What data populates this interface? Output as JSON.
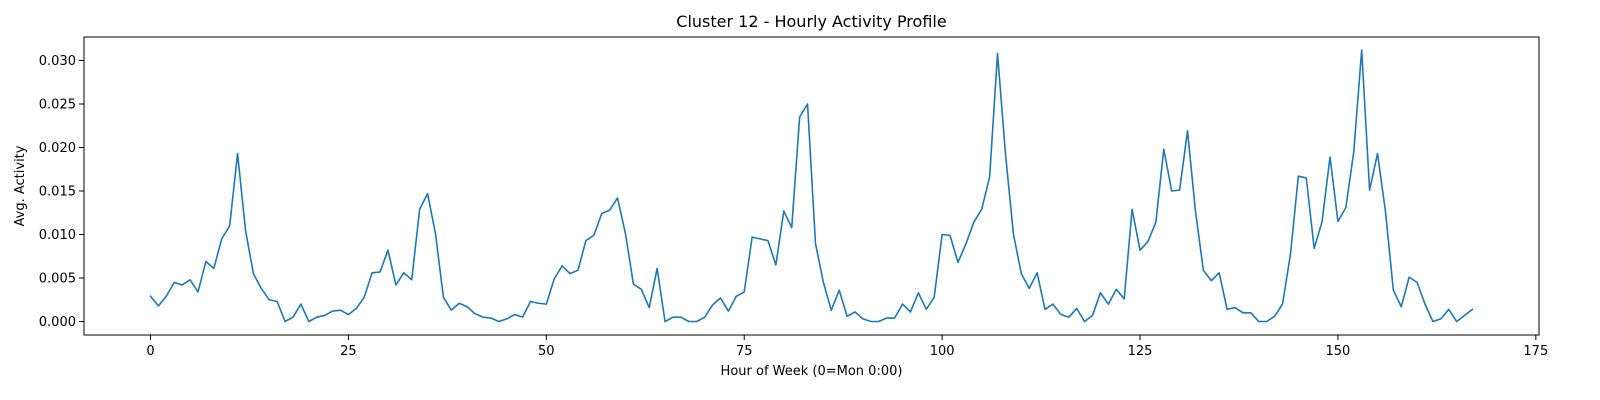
{
  "chart_data": {
    "type": "line",
    "title": "Cluster 12 - Hourly Activity Profile",
    "xlabel": "Hour of Week (0=Mon 0:00)",
    "ylabel": "Avg. Activity",
    "xlim": [
      -8.4,
      175.4
    ],
    "ylim": [
      -0.00155,
      0.0327
    ],
    "xticks": [
      0,
      25,
      50,
      75,
      100,
      125,
      150,
      175
    ],
    "xtick_labels": [
      "0",
      "25",
      "50",
      "75",
      "100",
      "125",
      "150",
      "175"
    ],
    "yticks": [
      0.0,
      0.005,
      0.01,
      0.015,
      0.02,
      0.025,
      0.03
    ],
    "ytick_labels": [
      "0.000",
      "0.005",
      "0.010",
      "0.015",
      "0.020",
      "0.025",
      "0.030"
    ],
    "grid": false,
    "line_color": "#1f77b4",
    "series": [
      {
        "name": "Avg. Activity",
        "x_start": 0,
        "x_step": 1,
        "values": [
          0.0029,
          0.0018,
          0.0029,
          0.0045,
          0.0042,
          0.0048,
          0.0034,
          0.0069,
          0.0061,
          0.0095,
          0.011,
          0.0193,
          0.0105,
          0.0055,
          0.0038,
          0.0025,
          0.0023,
          0.0,
          0.0005,
          0.002,
          0.0,
          0.0005,
          0.0007,
          0.0012,
          0.0013,
          0.0008,
          0.0015,
          0.0028,
          0.0056,
          0.0057,
          0.0082,
          0.0042,
          0.0056,
          0.0048,
          0.0129,
          0.0147,
          0.0101,
          0.0028,
          0.0013,
          0.0021,
          0.0017,
          0.0009,
          0.0005,
          0.0004,
          0.0,
          0.0003,
          0.0008,
          0.0005,
          0.0023,
          0.0021,
          0.002,
          0.0049,
          0.0064,
          0.0055,
          0.0059,
          0.0093,
          0.0099,
          0.0124,
          0.0128,
          0.0142,
          0.0101,
          0.0043,
          0.0037,
          0.0016,
          0.0061,
          0.0,
          0.0005,
          0.0005,
          0.0,
          0.0,
          0.0005,
          0.0019,
          0.0027,
          0.0012,
          0.0029,
          0.0034,
          0.0097,
          0.0095,
          0.0093,
          0.0065,
          0.0127,
          0.0108,
          0.0235,
          0.025,
          0.009,
          0.0045,
          0.0013,
          0.0036,
          0.0006,
          0.0011,
          0.0003,
          0.0,
          0.0,
          0.0004,
          0.0004,
          0.002,
          0.0011,
          0.0033,
          0.0014,
          0.0028,
          0.01,
          0.0099,
          0.0068,
          0.0089,
          0.0114,
          0.0129,
          0.0166,
          0.0308,
          0.0193,
          0.0101,
          0.0055,
          0.0038,
          0.0056,
          0.0014,
          0.002,
          0.0008,
          0.0005,
          0.0015,
          0.0,
          0.0007,
          0.0033,
          0.002,
          0.0037,
          0.0026,
          0.0129,
          0.0082,
          0.0092,
          0.0114,
          0.0198,
          0.015,
          0.0151,
          0.0219,
          0.0127,
          0.0059,
          0.0047,
          0.0056,
          0.0014,
          0.0016,
          0.001,
          0.001,
          0.0,
          0.0,
          0.0006,
          0.002,
          0.0077,
          0.0167,
          0.0165,
          0.0084,
          0.0115,
          0.0189,
          0.0115,
          0.0131,
          0.0195,
          0.0312,
          0.0151,
          0.0193,
          0.0127,
          0.0036,
          0.0017,
          0.0051,
          0.0045,
          0.002,
          0.0,
          0.0003,
          0.0014,
          0.0,
          0.0007,
          0.0014
        ]
      }
    ]
  }
}
